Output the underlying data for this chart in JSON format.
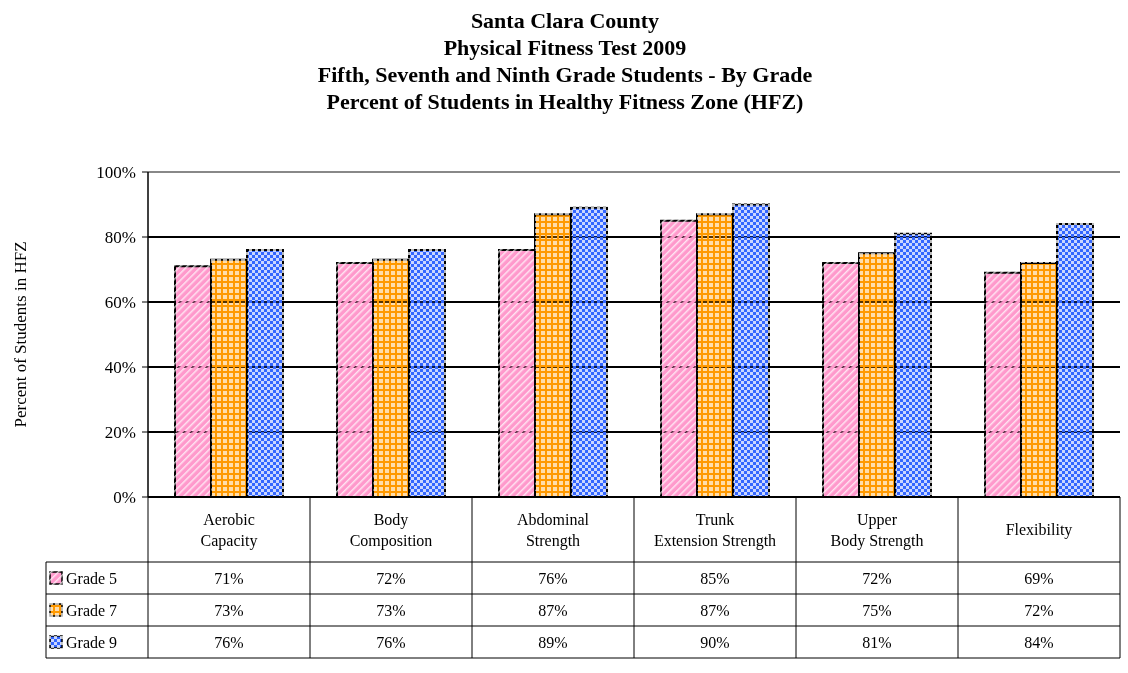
{
  "chart_data": {
    "type": "bar",
    "title": "Santa Clara County\nPhysical Fitness Test 2009\nFifth, Seventh and Ninth Grade Students - By Grade\nPercent of Students in Healthy Fitness Zone (HFZ)",
    "ylabel": "Percent of Students in HFZ",
    "categories": [
      "Aerobic Capacity",
      "Body Composition",
      "Abdominal Strength",
      "Trunk Extension Strength",
      "Upper Body Strength",
      "Flexibility"
    ],
    "series": [
      {
        "name": "Grade 5",
        "color": "#ff99cc",
        "values": [
          71,
          72,
          76,
          85,
          72,
          69
        ],
        "value_labels": [
          "71%",
          "72%",
          "76%",
          "85%",
          "72%",
          "69%"
        ]
      },
      {
        "name": "Grade 7",
        "color": "#ff9900",
        "values": [
          73,
          73,
          87,
          87,
          75,
          72
        ],
        "value_labels": [
          "73%",
          "73%",
          "87%",
          "87%",
          "75%",
          "72%"
        ]
      },
      {
        "name": "Grade 9",
        "color": "#3366ff",
        "values": [
          76,
          76,
          89,
          90,
          81,
          84
        ],
        "value_labels": [
          "76%",
          "76%",
          "89%",
          "90%",
          "81%",
          "84%"
        ]
      }
    ],
    "ylim": [
      0,
      100
    ],
    "yticks": [
      {
        "value": 0,
        "label": "0%"
      },
      {
        "value": 20,
        "label": "20%"
      },
      {
        "value": 40,
        "label": "40%"
      },
      {
        "value": 60,
        "label": "60%"
      },
      {
        "value": 80,
        "label": "80%"
      },
      {
        "value": 100,
        "label": "100%"
      }
    ],
    "grid": "y",
    "legend": "bottom"
  }
}
